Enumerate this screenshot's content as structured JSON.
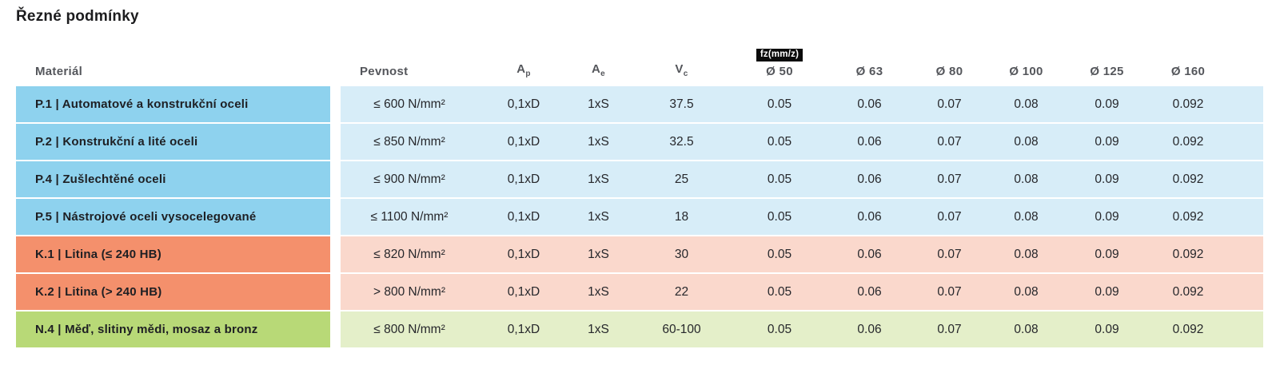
{
  "title": "Řezné podmínky",
  "colors": {
    "steel_dark": "#8ed2ee",
    "steel_light": "#d7edf8",
    "cast_dark": "#f4906c",
    "cast_light": "#fad8cc",
    "nonferrous_dark": "#b8d977",
    "nonferrous_light": "#e4efc9",
    "header_text": "#54565b",
    "body_text": "#26272b",
    "badge_bg": "#0b0b0b",
    "badge_text": "#ffffff"
  },
  "table": {
    "headers": {
      "material": "Materiál",
      "pevnost": "Pevnost",
      "ap": {
        "base": "A",
        "sub": "p"
      },
      "ae": {
        "base": "A",
        "sub": "e"
      },
      "vc": {
        "base": "V",
        "sub": "c"
      },
      "fz_badge": "fz(mm/z)",
      "diameters": [
        "Ø 50",
        "Ø 63",
        "Ø 80",
        "Ø 100",
        "Ø 125",
        "Ø 160"
      ]
    },
    "rows": [
      {
        "group": "steel",
        "material": "P.1 | Automatové a konstrukční oceli",
        "pevnost": "≤ 600 N/mm²",
        "ap": "0,1xD",
        "ae": "1xS",
        "vc": "37.5",
        "fz": [
          "0.05",
          "0.06",
          "0.07",
          "0.08",
          "0.09",
          "0.092"
        ]
      },
      {
        "group": "steel",
        "material": "P.2 | Konstrukční a lité oceli",
        "pevnost": "≤ 850 N/mm²",
        "ap": "0,1xD",
        "ae": "1xS",
        "vc": "32.5",
        "fz": [
          "0.05",
          "0.06",
          "0.07",
          "0.08",
          "0.09",
          "0.092"
        ]
      },
      {
        "group": "steel",
        "material": "P.4 | Zušlechtěné oceli",
        "pevnost": "≤ 900 N/mm²",
        "ap": "0,1xD",
        "ae": "1xS",
        "vc": "25",
        "fz": [
          "0.05",
          "0.06",
          "0.07",
          "0.08",
          "0.09",
          "0.092"
        ]
      },
      {
        "group": "steel",
        "material": "P.5 | Nástrojové oceli vysocelegované",
        "pevnost": "≤ 1100 N/mm²",
        "ap": "0,1xD",
        "ae": "1xS",
        "vc": "18",
        "fz": [
          "0.05",
          "0.06",
          "0.07",
          "0.08",
          "0.09",
          "0.092"
        ]
      },
      {
        "group": "cast-iron",
        "material": "K.1 | Litina (≤ 240 HB)",
        "pevnost": "≤ 820 N/mm²",
        "ap": "0,1xD",
        "ae": "1xS",
        "vc": "30",
        "fz": [
          "0.05",
          "0.06",
          "0.07",
          "0.08",
          "0.09",
          "0.092"
        ]
      },
      {
        "group": "cast-iron",
        "material": "K.2 | Litina (> 240 HB)",
        "pevnost": "> 800 N/mm²",
        "ap": "0,1xD",
        "ae": "1xS",
        "vc": "22",
        "fz": [
          "0.05",
          "0.06",
          "0.07",
          "0.08",
          "0.09",
          "0.092"
        ]
      },
      {
        "group": "nonferrous",
        "material": "N.4 | Měď, slitiny mědi, mosaz a bronz",
        "pevnost": "≤ 800 N/mm²",
        "ap": "0,1xD",
        "ae": "1xS",
        "vc": "60-100",
        "fz": [
          "0.05",
          "0.06",
          "0.07",
          "0.08",
          "0.09",
          "0.092"
        ]
      }
    ]
  }
}
